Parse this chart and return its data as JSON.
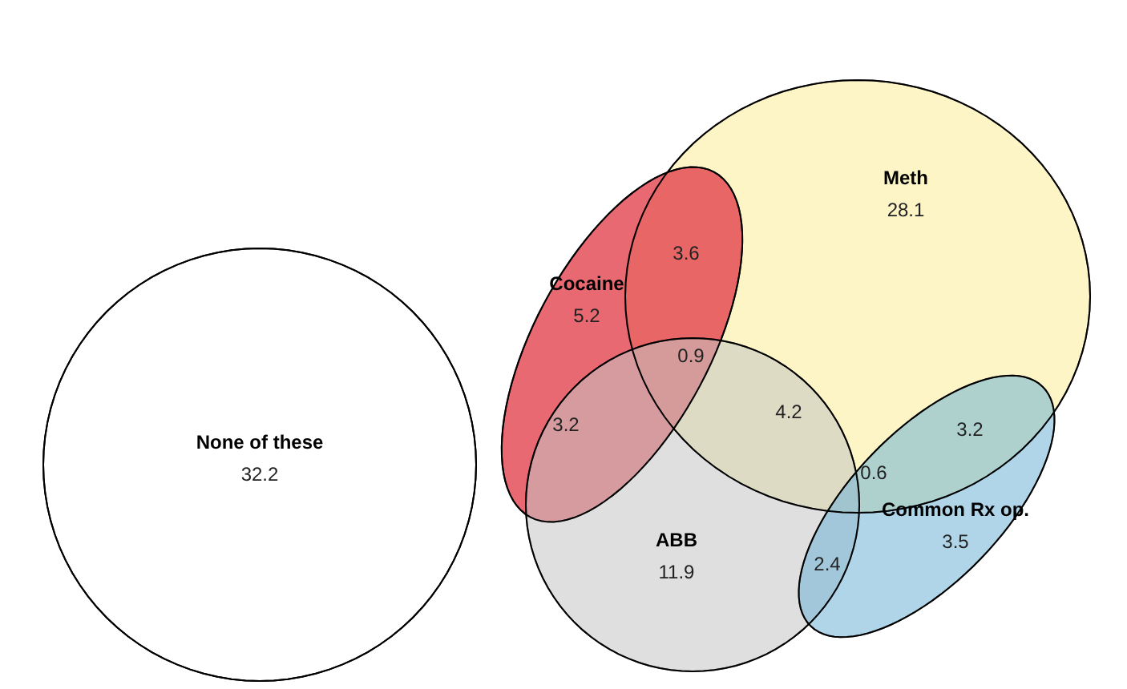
{
  "chart_data": {
    "type": "other",
    "categories": [
      "None of these",
      "Meth",
      "Cocaine",
      "ABB",
      "Common Rx op."
    ],
    "values": [
      32.2,
      28.1,
      5.2,
      11.9,
      3.5
    ],
    "colors": [
      "#ffffff",
      "#fbeea0",
      "#e2444e",
      "#c4c4c4",
      "#6fb2d6"
    ],
    "data_labels": true,
    "annotations": [
      "3.6",
      "0.9",
      "3.2",
      "4.2",
      "3.2",
      "0.6",
      "2.4"
    ]
  }
}
